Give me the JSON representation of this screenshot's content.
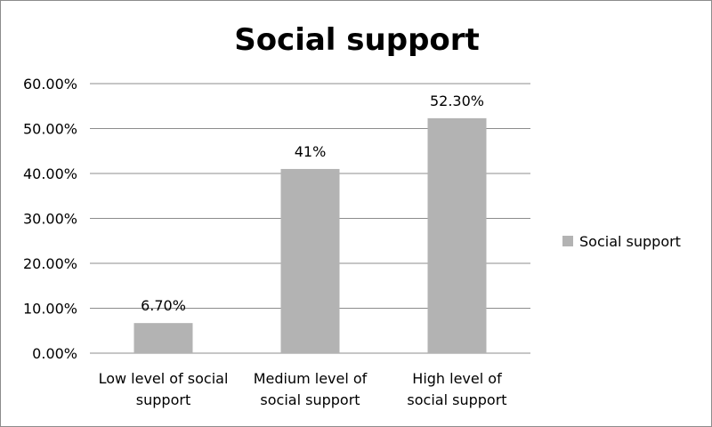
{
  "chart_data": {
    "type": "bar",
    "title": "Social support",
    "categories": [
      [
        "Low level of social",
        "support"
      ],
      [
        "Medium level of",
        "social support"
      ],
      [
        "High level of",
        "social support"
      ]
    ],
    "series": [
      {
        "name": "Social support",
        "values": [
          6.7,
          41,
          52.3
        ],
        "labels": [
          "6.70%",
          "41%",
          "52.30%"
        ],
        "color": "#b3b3b3"
      }
    ],
    "ylim": [
      0,
      60
    ],
    "yticks": [
      "0.00%",
      "10.00%",
      "20.00%",
      "30.00%",
      "40.00%",
      "50.00%",
      "60.00%"
    ],
    "grid": true,
    "legend": "right"
  }
}
